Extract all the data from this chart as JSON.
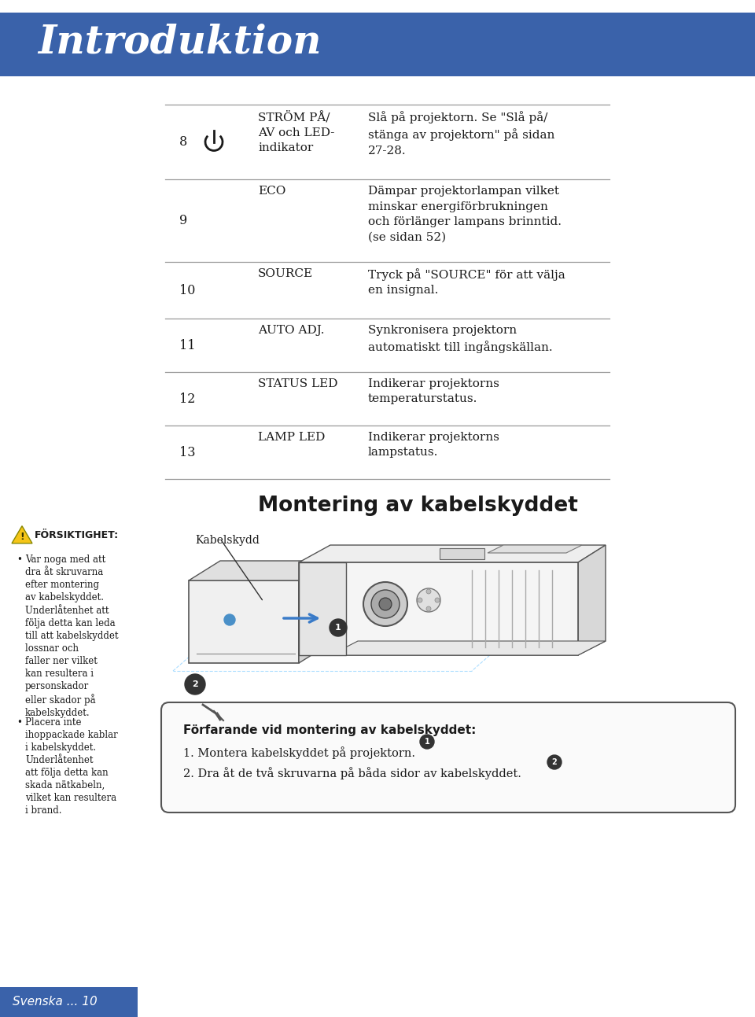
{
  "title": "Introduktion",
  "title_color": "#ffffff",
  "header_bg": "#3a62aa",
  "page_bg": "#ffffff",
  "footer_text": "Svenska ... 10",
  "footer_text_color": "#ffffff",
  "table_rows": [
    {
      "num": "8",
      "has_icon": true,
      "label": "STRÖM PÅ/\nAV och LED-\nindikator",
      "desc": "Slå på projektorn. Se \"Slå på/\nstänga av projektorn\" på sidan\n27-28."
    },
    {
      "num": "9",
      "has_icon": false,
      "label": "ECO",
      "desc": "Dämpar projektorlampan vilket\nminskar energiförbrukningen\noch förlänger lampans brinntid.\n(se sidan 52)"
    },
    {
      "num": "10",
      "has_icon": false,
      "label": "SOURCE",
      "desc": "Tryck på \"SOURCE\" för att välja\nen insignal."
    },
    {
      "num": "11",
      "has_icon": false,
      "label": "AUTO ADJ.",
      "desc": "Synkronisera projektorn\nautomatiskt till ingångskällan."
    },
    {
      "num": "12",
      "has_icon": false,
      "label": "STATUS LED",
      "desc": "Indikerar projektorns\ntemperaturstatus."
    },
    {
      "num": "13",
      "has_icon": false,
      "label": "LAMP LED",
      "desc": "Indikerar projektorns\nlampstatus."
    }
  ],
  "section2_title": "Montering av kabelskyddet",
  "warning_title": "FÖRSIKTIGHET:",
  "warning_bullet1_lines": [
    "Var noga med att",
    "dra åt skruvarna",
    "efter montering",
    "av kabelskyddet."
  ],
  "warning_bullet2_lines": [
    "Underlåtenhet att",
    "följa detta kan leda",
    "till att kabelskyddet",
    "lossnar och",
    "faller ner vilket",
    "kan resultera i",
    "personskador",
    "eller skador på",
    "kabelskyddet."
  ],
  "warning_bullet3_lines": [
    "Placera inte",
    "ihoppackade kablar",
    "i kabelskyddet.",
    "Underlåtenhet",
    "att följa detta kan",
    "skada nätkabeln,",
    "vilket kan resultera",
    "i brand."
  ],
  "kabelskydd_label": "Kabelskydd",
  "procedure_title": "Förfarande vid montering av kabelskyddet:",
  "procedure_step1": "1. Montera kabelskyddet på projektorn.",
  "procedure_step2": "2. Dra åt de två skruvarna på båda sidor av kabelskyddet.",
  "text_color": "#1a1a1a",
  "line_color": "#999999"
}
